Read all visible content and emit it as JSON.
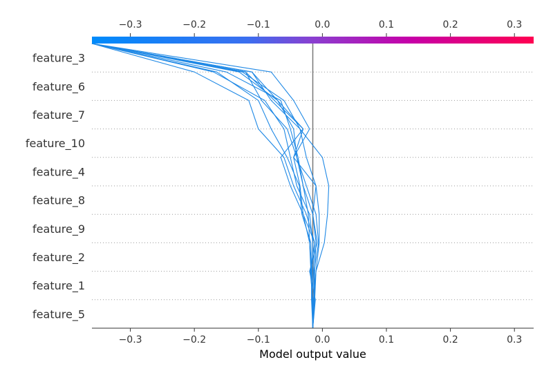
{
  "chart_data": {
    "type": "line",
    "subtype": "shap-decision-plot",
    "xlabel": "Model output value",
    "xlim": [
      -0.36,
      0.33
    ],
    "x_ticks": [
      -0.3,
      -0.2,
      -0.1,
      0.0,
      0.1,
      0.2,
      0.3
    ],
    "x_tick_labels": [
      "−0.3",
      "−0.2",
      "−0.1",
      "0.0",
      "0.1",
      "0.2",
      "0.3"
    ],
    "base_value": -0.015,
    "features": [
      "feature_3",
      "feature_6",
      "feature_7",
      "feature_10",
      "feature_4",
      "feature_8",
      "feature_9",
      "feature_2",
      "feature_1",
      "feature_5"
    ],
    "colormap": [
      "#008bfb",
      "#8a3fd0",
      "#c600a8",
      "#ff0051"
    ],
    "line_color": "#1e88e5",
    "base_line_color": "#777777",
    "grid": "dotted horizontal separators",
    "series": [
      {
        "values": [
          -0.015,
          -0.012,
          -0.014,
          -0.012,
          -0.03,
          -0.035,
          -0.045,
          -0.03,
          -0.075,
          -0.12,
          -0.36
        ]
      },
      {
        "values": [
          -0.015,
          -0.012,
          -0.013,
          -0.006,
          -0.01,
          -0.025,
          -0.04,
          -0.045,
          -0.07,
          -0.13,
          -0.36
        ]
      },
      {
        "values": [
          -0.015,
          -0.016,
          -0.018,
          -0.02,
          -0.022,
          -0.03,
          -0.038,
          -0.05,
          -0.065,
          -0.15,
          -0.36
        ]
      },
      {
        "values": [
          -0.015,
          -0.017,
          -0.017,
          -0.018,
          -0.032,
          -0.036,
          -0.055,
          -0.08,
          -0.1,
          -0.165,
          -0.36
        ]
      },
      {
        "values": [
          -0.015,
          -0.014,
          -0.01,
          0.003,
          0.008,
          0.01,
          0.0,
          -0.035,
          -0.08,
          -0.11,
          -0.36
        ]
      },
      {
        "values": [
          -0.015,
          -0.011,
          -0.02,
          -0.008,
          -0.015,
          -0.01,
          -0.045,
          -0.02,
          -0.045,
          -0.08,
          -0.36
        ]
      },
      {
        "values": [
          -0.015,
          -0.013,
          -0.016,
          -0.015,
          -0.02,
          -0.04,
          -0.05,
          -0.06,
          -0.09,
          -0.17,
          -0.36
        ]
      },
      {
        "values": [
          -0.015,
          -0.015,
          -0.019,
          -0.012,
          -0.025,
          -0.045,
          -0.06,
          -0.1,
          -0.115,
          -0.2,
          -0.36
        ]
      },
      {
        "values": [
          -0.015,
          -0.012,
          -0.01,
          -0.005,
          -0.005,
          -0.01,
          -0.025,
          -0.035,
          -0.06,
          -0.125,
          -0.36
        ]
      },
      {
        "values": [
          -0.015,
          -0.016,
          -0.017,
          -0.02,
          -0.03,
          -0.05,
          -0.065,
          -0.03,
          -0.07,
          -0.11,
          -0.36
        ]
      },
      {
        "values": [
          -0.015,
          -0.013,
          -0.012,
          -0.01,
          -0.015,
          -0.03,
          -0.04,
          -0.055,
          -0.095,
          -0.12,
          -0.36
        ]
      }
    ]
  }
}
